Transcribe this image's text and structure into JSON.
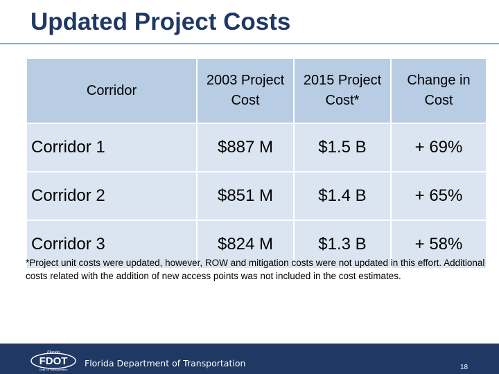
{
  "slide": {
    "title": "Updated Project Costs",
    "page_number": "18"
  },
  "table": {
    "headers": [
      "Corridor",
      "2003 Project Cost",
      "2015 Project Cost*",
      "Change in Cost"
    ],
    "rows": [
      [
        "Corridor 1",
        "$887 M",
        "$1.5 B",
        "+ 69%"
      ],
      [
        "Corridor 2",
        "$851 M",
        "$1.4 B",
        "+ 65%"
      ],
      [
        "Corridor 3",
        "$824 M",
        "$1.3 B",
        "+ 58%"
      ]
    ]
  },
  "footnote": "*Project unit costs were updated, however, ROW and mitigation costs were not updated in this effort.  Additional costs related with the addition of new access points was not included in the cost estimates.",
  "footer": {
    "logo_text": "FDOT",
    "logo_small_top": "Florida",
    "logo_small_bottom": "Dept. of Transportation",
    "agency_name": "Florida Department of Transportation",
    "background_color": "#1f3864"
  }
}
